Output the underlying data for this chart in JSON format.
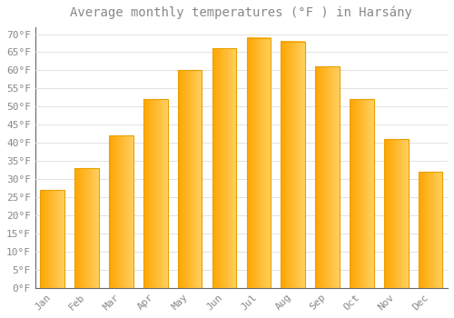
{
  "title": "Average monthly temperatures (°F ) in Harsány",
  "months": [
    "Jan",
    "Feb",
    "Mar",
    "Apr",
    "May",
    "Jun",
    "Jul",
    "Aug",
    "Sep",
    "Oct",
    "Nov",
    "Dec"
  ],
  "values": [
    27,
    33,
    42,
    52,
    60,
    66,
    69,
    68,
    61,
    52,
    41,
    32
  ],
  "bar_color_left": "#FFA500",
  "bar_color_right": "#FFD060",
  "bar_edge_color": "#E8A000",
  "background_color": "#FFFFFF",
  "grid_color": "#DDDDDD",
  "text_color": "#888888",
  "ylim": [
    0,
    72
  ],
  "yticks": [
    0,
    5,
    10,
    15,
    20,
    25,
    30,
    35,
    40,
    45,
    50,
    55,
    60,
    65,
    70
  ],
  "ylabel_suffix": "°F",
  "title_fontsize": 10,
  "tick_fontsize": 8,
  "font_family": "monospace"
}
